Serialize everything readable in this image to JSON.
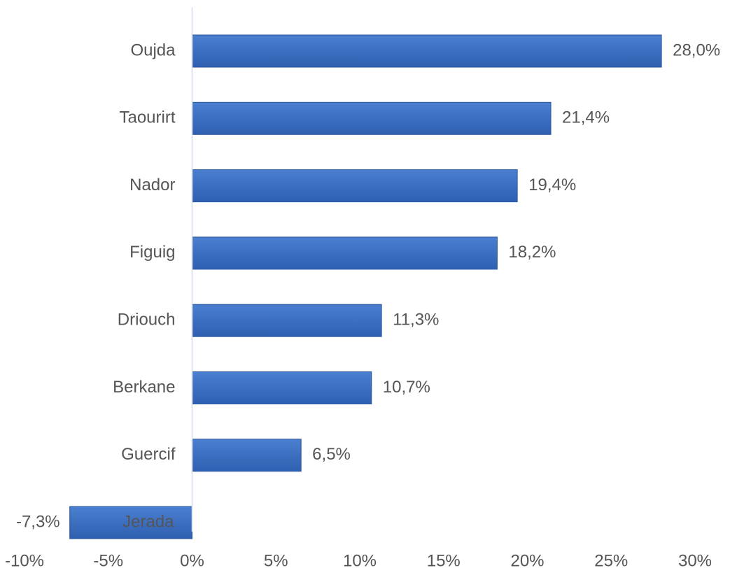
{
  "chart_data": {
    "type": "bar",
    "orientation": "horizontal",
    "title": "",
    "xlabel": "",
    "ylabel": "",
    "categories": [
      "Oujda",
      "Taourirt",
      "Nador",
      "Figuig",
      "Driouch",
      "Berkane",
      "Guercif",
      "Jerada"
    ],
    "values": [
      28.0,
      21.4,
      19.4,
      18.2,
      11.3,
      10.7,
      6.5,
      -7.3
    ],
    "value_labels": [
      "28,0%",
      "21,4%",
      "19,4%",
      "18,2%",
      "11,3%",
      "10,7%",
      "6,5%",
      "-7,3%"
    ],
    "xlim": [
      -10,
      30
    ],
    "ticks": [
      -10,
      -5,
      0,
      5,
      10,
      15,
      20,
      25,
      30
    ],
    "tick_labels": [
      "-10%",
      "-5%",
      "0%",
      "5%",
      "10%",
      "15%",
      "20%",
      "25%",
      "30%"
    ],
    "grid": false,
    "legend": "none",
    "bar_color": "#2f5fb0",
    "bar_color_light": "#4a7fd0",
    "axis_color": "#d6dde8",
    "text_color": "#555555"
  }
}
